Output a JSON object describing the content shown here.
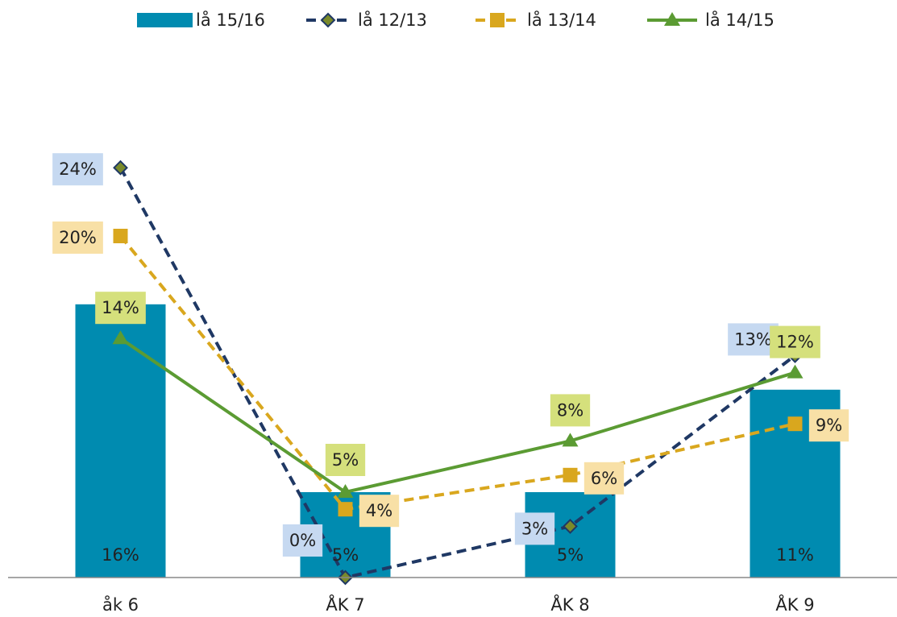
{
  "chart_data": {
    "type": "bar",
    "categories": [
      "åk 6",
      "ÅK 7",
      "ÅK 8",
      "ÅK 9"
    ],
    "ylim": [
      0,
      30
    ],
    "series": [
      {
        "name": "lå 15/16",
        "type": "bar",
        "color": "#008bb0",
        "values": [
          16,
          5,
          5,
          11
        ],
        "value_labels": [
          "16%",
          "5%",
          "5%",
          "11%"
        ]
      },
      {
        "name": "lå 12/13",
        "type": "line",
        "color": "#1f3864",
        "marker": "diamond",
        "dash": true,
        "label_color": "#c6d9f1",
        "values": [
          24,
          0,
          3,
          13
        ],
        "value_labels": [
          "24%",
          "0%",
          "3%",
          "13%"
        ]
      },
      {
        "name": "lå 13/14",
        "type": "line",
        "color": "#d9a71e",
        "marker": "square",
        "dash": true,
        "label_color": "#f8e0a6",
        "values": [
          20,
          4,
          6,
          9
        ],
        "value_labels": [
          "20%",
          "4%",
          "6%",
          "9%"
        ]
      },
      {
        "name": "lå 14/15",
        "type": "line",
        "color": "#5b9b33",
        "marker": "triangle",
        "dash": false,
        "label_color": "#d5e07c",
        "values": [
          14,
          5,
          8,
          12
        ],
        "value_labels": [
          "14%",
          "5%",
          "8%",
          "12%"
        ]
      }
    ]
  }
}
